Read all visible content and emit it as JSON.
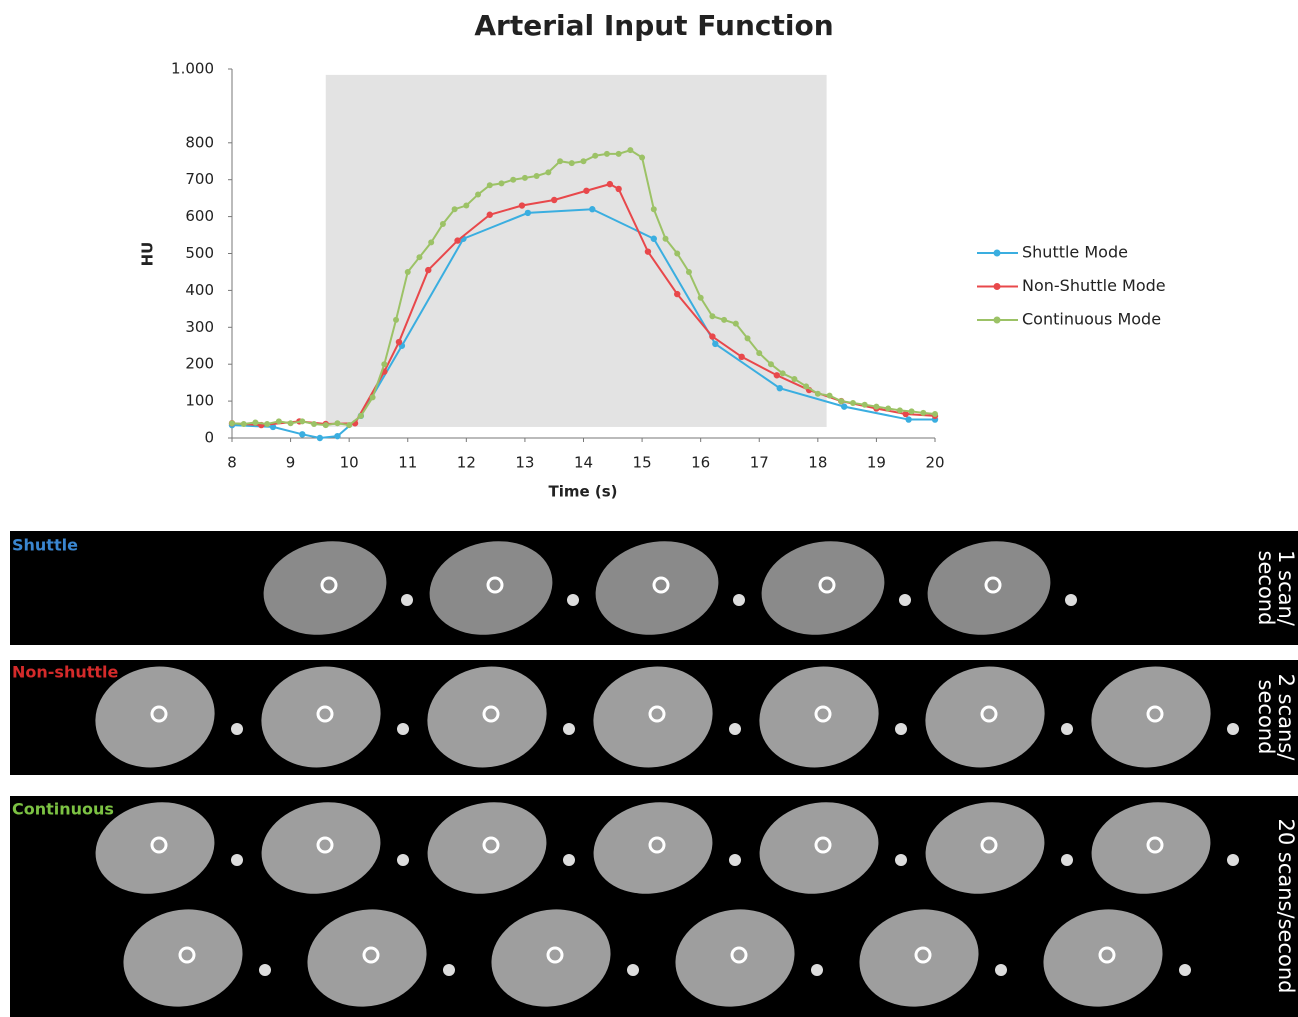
{
  "chart_data": {
    "type": "line",
    "title": "Arterial Input Function",
    "x_label": "Time (s)",
    "y_label": "HU",
    "xlim": [
      8,
      20
    ],
    "ylim": [
      0,
      1000
    ],
    "xticks": [
      8,
      9,
      10,
      11,
      12,
      13,
      14,
      15,
      16,
      17,
      18,
      19,
      20
    ],
    "yticks": [
      0,
      100,
      200,
      300,
      400,
      500,
      600,
      700,
      800,
      {
        "value": 1000,
        "label": "1.000"
      }
    ],
    "highlight_region": {
      "color": "#e3e3e3",
      "x": [
        9.6,
        18.15
      ],
      "y": [
        30,
        984
      ]
    },
    "legend": "right",
    "series": [
      {
        "name": "Shuttle Mode",
        "color": "#3aaee0",
        "x": [
          8,
          8.7,
          9.2,
          9.5,
          9.8,
          10.2,
          10.9,
          11.95,
          13.05,
          14.15,
          15.2,
          16.25,
          17.35,
          18.45,
          19.55,
          20
        ],
        "values": [
          35,
          30,
          10,
          0,
          5,
          60,
          250,
          540,
          610,
          620,
          540,
          255,
          135,
          85,
          50,
          50
        ]
      },
      {
        "name": "Non-Shuttle Mode",
        "color": "#e8484b",
        "x": [
          8,
          8.5,
          9.15,
          9.6,
          10.1,
          10.6,
          10.85,
          11.35,
          11.85,
          12.4,
          12.95,
          13.5,
          14.05,
          14.45,
          14.6,
          15.1,
          15.6,
          16.2,
          16.7,
          17.3,
          17.85,
          18.4,
          19,
          19.5,
          20
        ],
        "values": [
          40,
          35,
          45,
          38,
          40,
          180,
          260,
          455,
          535,
          605,
          630,
          645,
          670,
          688,
          675,
          505,
          390,
          275,
          220,
          170,
          130,
          100,
          80,
          65,
          60
        ]
      },
      {
        "name": "Continuous Mode",
        "color": "#9cc266",
        "x": [
          8,
          8.2,
          8.4,
          8.6,
          8.8,
          9,
          9.2,
          9.4,
          9.6,
          9.8,
          10,
          10.2,
          10.4,
          10.6,
          10.8,
          11,
          11.2,
          11.4,
          11.6,
          11.8,
          12,
          12.2,
          12.4,
          12.6,
          12.8,
          13,
          13.2,
          13.4,
          13.6,
          13.8,
          14,
          14.2,
          14.4,
          14.6,
          14.8,
          15,
          15.2,
          15.4,
          15.6,
          15.8,
          16,
          16.2,
          16.4,
          16.6,
          16.8,
          17,
          17.2,
          17.4,
          17.6,
          17.8,
          18,
          18.2,
          18.4,
          18.6,
          18.8,
          19,
          19.2,
          19.4,
          19.6,
          19.8,
          20
        ],
        "values": [
          40,
          38,
          42,
          38,
          45,
          40,
          45,
          38,
          35,
          40,
          35,
          60,
          110,
          200,
          320,
          450,
          490,
          530,
          580,
          620,
          630,
          660,
          685,
          690,
          700,
          705,
          710,
          720,
          750,
          745,
          750,
          765,
          770,
          770,
          780,
          760,
          620,
          540,
          500,
          450,
          380,
          330,
          320,
          310,
          270,
          230,
          200,
          175,
          160,
          140,
          120,
          115,
          100,
          95,
          90,
          85,
          80,
          75,
          72,
          68,
          65
        ]
      }
    ]
  },
  "panels": [
    {
      "label": "Shuttle",
      "label_color": "#3a86d0",
      "rate": [
        "1 scan/",
        "second"
      ]
    },
    {
      "label": "Non-shuttle",
      "label_color": "#d42a2a",
      "rate": [
        "2 scans/",
        "second"
      ]
    },
    {
      "label": "Continuous",
      "label_color": "#7cc243",
      "rate": [
        "20 scans/second"
      ]
    }
  ]
}
